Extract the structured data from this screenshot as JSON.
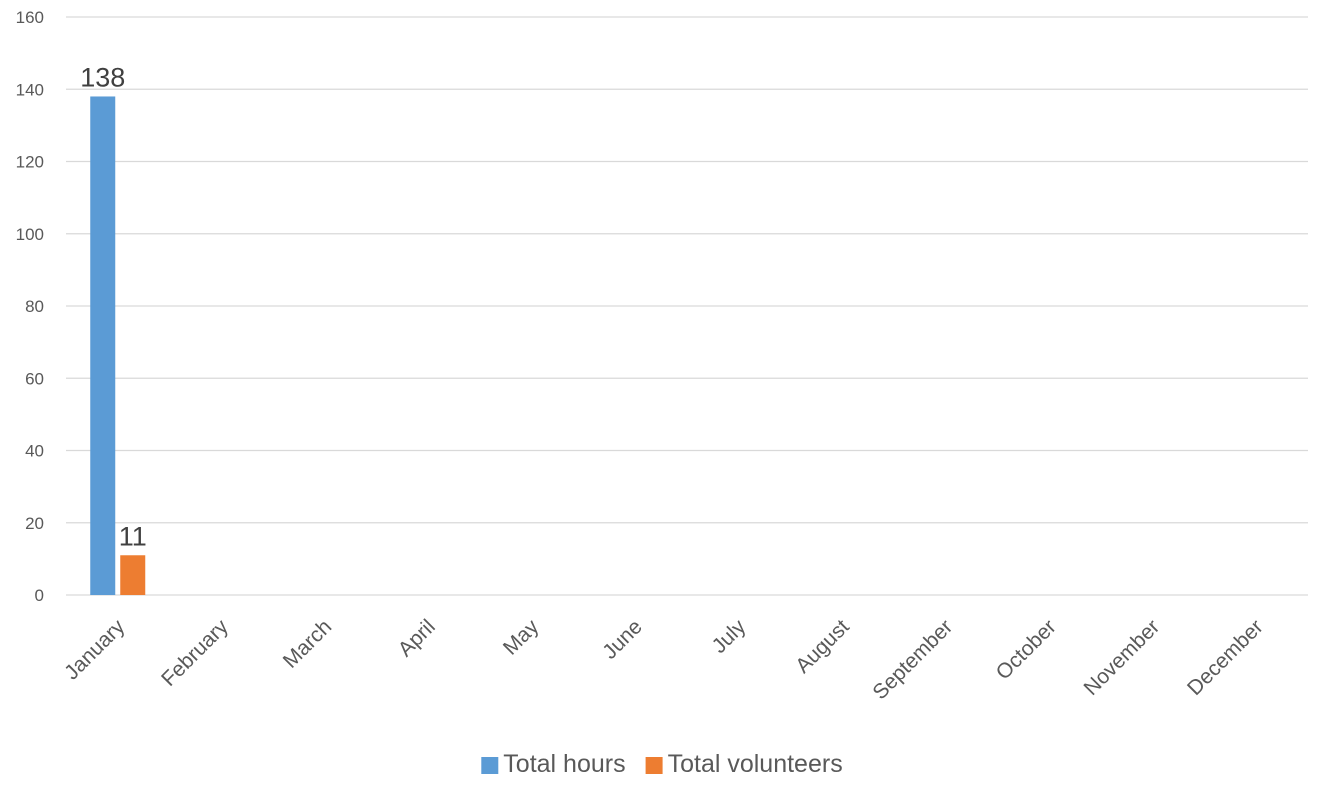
{
  "chart_data": {
    "type": "bar",
    "title": "",
    "xlabel": "",
    "ylabel": "",
    "categories": [
      "January",
      "February",
      "March",
      "April",
      "May",
      "June",
      "July",
      "August",
      "September",
      "October",
      "November",
      "December"
    ],
    "series": [
      {
        "name": "Total hours",
        "color": "#5b9bd5",
        "values": [
          138,
          null,
          null,
          null,
          null,
          null,
          null,
          null,
          null,
          null,
          null,
          null
        ],
        "data_labels": [
          "138"
        ]
      },
      {
        "name": "Total volunteers",
        "color": "#ed7d31",
        "values": [
          11,
          null,
          null,
          null,
          null,
          null,
          null,
          null,
          null,
          null,
          null,
          null
        ],
        "data_labels": [
          "11"
        ]
      }
    ],
    "ylim": [
      0,
      160
    ],
    "yticks": [
      0,
      20,
      40,
      60,
      80,
      100,
      120,
      140,
      160
    ],
    "grid": true,
    "legend_position": "bottom"
  }
}
